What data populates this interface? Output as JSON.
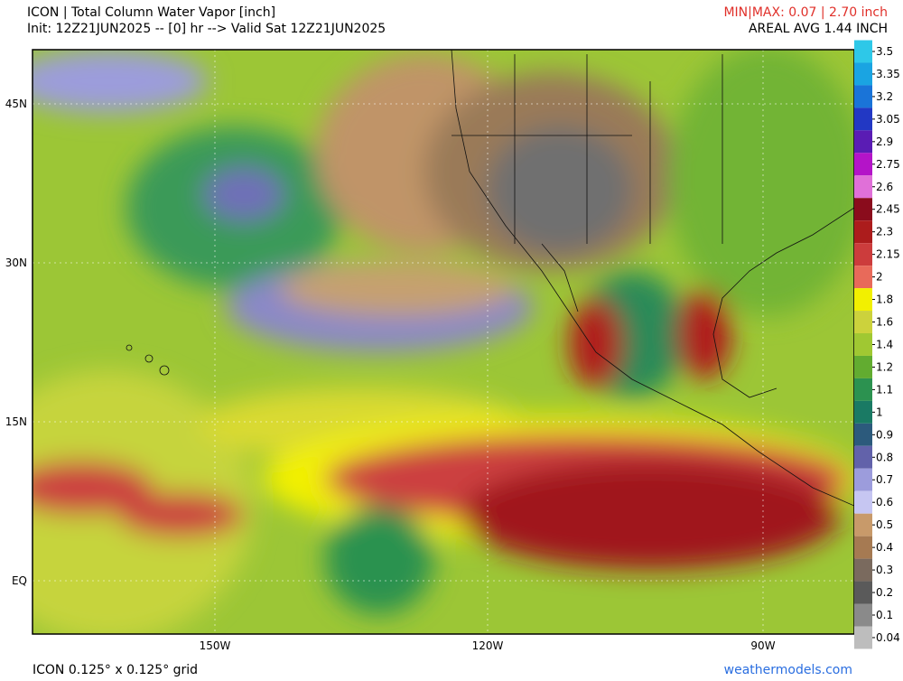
{
  "header": {
    "title": "ICON | Total Column Water Vapor [inch]",
    "init": "Init: 12Z21JUN2025 -- [0] hr --> Valid Sat 12Z21JUN2025",
    "minmax": "MIN|MAX: 0.07 | 2.70 inch",
    "areal_avg": "AREAL AVG 1.44 INCH"
  },
  "map": {
    "lat_labels": [
      "45N",
      "30N",
      "15N",
      "EQ"
    ],
    "lon_labels": [
      "150W",
      "120W",
      "90W"
    ]
  },
  "colorbar": {
    "levels": [
      3.5,
      3.35,
      3.2,
      3.05,
      2.9,
      2.75,
      2.6,
      2.45,
      2.3,
      2.15,
      2,
      1.8,
      1.6,
      1.4,
      1.2,
      1.1,
      1,
      0.9,
      0.8,
      0.7,
      0.6,
      0.5,
      0.4,
      0.3,
      0.2,
      0.1,
      0.04
    ],
    "colors": [
      "#2ec8e8",
      "#1aa4e2",
      "#1a74d8",
      "#2238c4",
      "#5a1cb4",
      "#b414c8",
      "#e070d8",
      "#8a0c1c",
      "#ac1c1c",
      "#cc3c3c",
      "#e86a5a",
      "#f2f000",
      "#ccd23c",
      "#a0c832",
      "#62ac30",
      "#2c9250",
      "#1a7a64",
      "#2c5a7c",
      "#6262aa",
      "#9c9cdc",
      "#c6c6f2",
      "#c89a6a",
      "#a67a52",
      "#7a6a5e",
      "#5a5a5a",
      "#8a8a8a",
      "#bdbdbd"
    ]
  },
  "footer": {
    "grid": "ICON 0.125° x 0.125° grid",
    "site": "weathermodels.com"
  }
}
